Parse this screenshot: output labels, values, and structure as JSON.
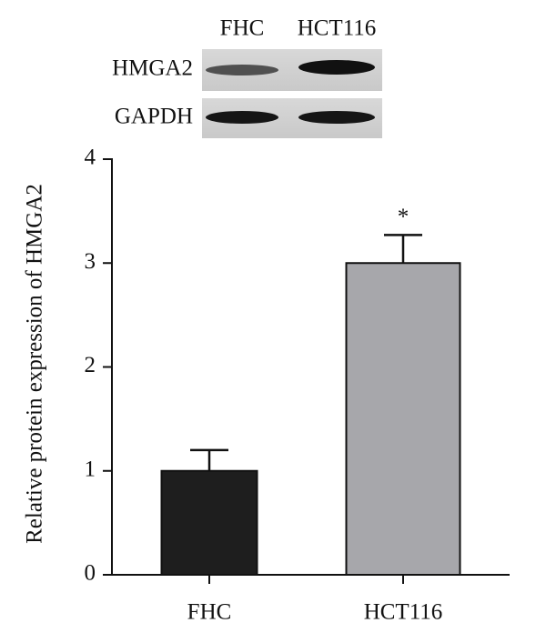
{
  "blot": {
    "lanes": [
      "FHC",
      "HCT116"
    ],
    "rows": [
      "HMGA2",
      "GAPDH"
    ]
  },
  "chart_data": {
    "type": "bar",
    "y_label": "Relative protein expression of HMGA2",
    "categories": [
      "FHC",
      "HCT116"
    ],
    "values": [
      1.0,
      3.0
    ],
    "errors": [
      0.2,
      0.27
    ],
    "colors": [
      "#1e1e1e",
      "#a7a7ab"
    ],
    "annotations": [
      null,
      "*"
    ],
    "ylim": [
      0,
      4
    ],
    "yticks": [
      0,
      1,
      2,
      3,
      4
    ],
    "grid": false
  }
}
